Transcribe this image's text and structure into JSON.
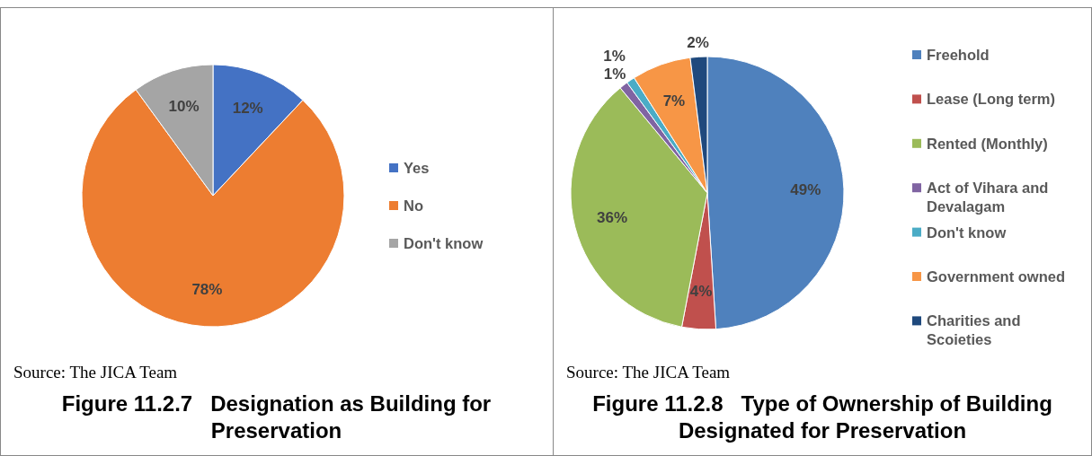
{
  "chart_data": [
    {
      "type": "pie",
      "title": "Figure 11.2.7   Designation as Building for Preservation",
      "categories": [
        "Yes",
        "No",
        "Don't know"
      ],
      "values": [
        12,
        78,
        10
      ],
      "colors": [
        "#4472c4",
        "#ed7d31",
        "#a5a5a5"
      ],
      "value_labels": [
        "12%",
        "78%",
        "10%"
      ],
      "legend": "right",
      "annotations": [
        "Source: The JICA Team"
      ]
    },
    {
      "type": "pie",
      "title": "Figure 11.2.8   Type of Ownership of Building Designated for Preservation",
      "categories": [
        "Freehold",
        "Lease (Long term)",
        "Rented (Monthly)",
        "Act of Vihara and Devalagam",
        "Don't know",
        "Government owned",
        "Charities and Scoieties"
      ],
      "values": [
        49,
        4,
        36,
        1,
        1,
        7,
        2
      ],
      "colors": [
        "#4f81bd",
        "#c0504d",
        "#9bbb59",
        "#8064a2",
        "#4bacc6",
        "#f79646",
        "#1f497d"
      ],
      "value_labels": [
        "49%",
        "4%",
        "36%",
        "1%",
        "1%",
        "7%",
        "2%"
      ],
      "legend": "right",
      "annotations": [
        "Source: The JICA Team"
      ]
    }
  ]
}
